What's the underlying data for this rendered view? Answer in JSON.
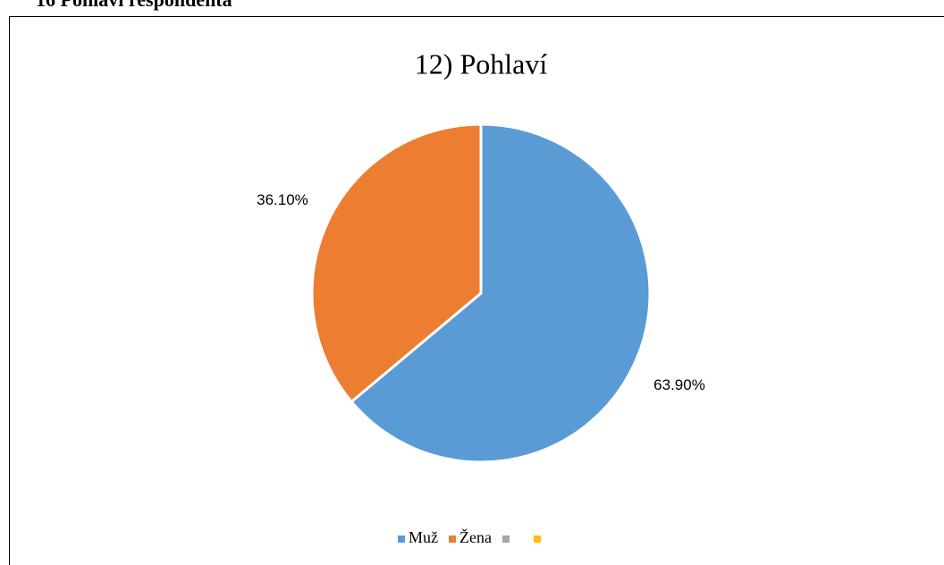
{
  "caption": "16 Pohlaví respondenta",
  "chart_data": {
    "type": "pie",
    "title": "12) Pohlaví",
    "categories": [
      "Muž",
      "Žena",
      null,
      null
    ],
    "values": [
      63.9,
      36.1,
      0,
      0
    ],
    "value_labels": [
      "63.90%",
      "36.10%",
      null,
      null
    ],
    "colors": [
      "#5b9bd5",
      "#ed7d31",
      "#a5a5a5",
      "#ffc000"
    ],
    "legend": "bottom"
  }
}
